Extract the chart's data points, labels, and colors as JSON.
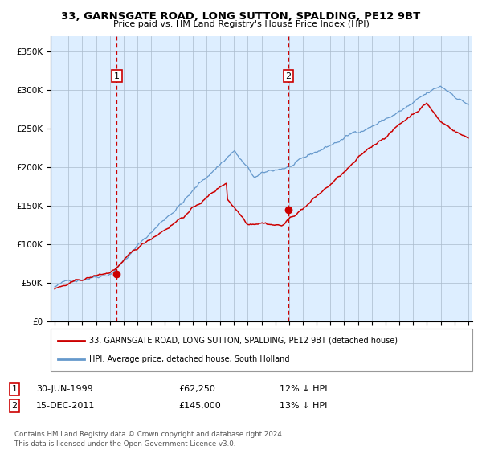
{
  "title": "33, GARNSGATE ROAD, LONG SUTTON, SPALDING, PE12 9BT",
  "subtitle": "Price paid vs. HM Land Registry's House Price Index (HPI)",
  "legend_label_red": "33, GARNSGATE ROAD, LONG SUTTON, SPALDING, PE12 9BT (detached house)",
  "legend_label_blue": "HPI: Average price, detached house, South Holland",
  "annotation1_label": "1",
  "annotation1_date": "30-JUN-1999",
  "annotation1_price": "£62,250",
  "annotation1_hpi": "12% ↓ HPI",
  "annotation2_label": "2",
  "annotation2_date": "15-DEC-2011",
  "annotation2_price": "£145,000",
  "annotation2_hpi": "13% ↓ HPI",
  "footer": "Contains HM Land Registry data © Crown copyright and database right 2024.\nThis data is licensed under the Open Government Licence v3.0.",
  "purchase1_x": 1999.5,
  "purchase1_y": 62250,
  "purchase2_x": 2011.958,
  "purchase2_y": 145000,
  "ylim": [
    0,
    370000
  ],
  "xlim_start": 1994.7,
  "xlim_end": 2025.3,
  "bg_color": "#ddeeff",
  "red_color": "#cc0000",
  "blue_color": "#6699cc",
  "grid_color": "#aabbcc"
}
